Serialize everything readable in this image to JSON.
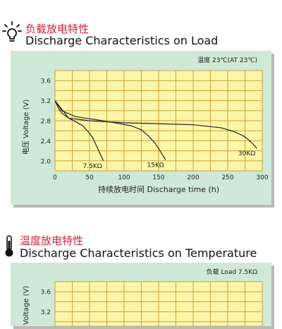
{
  "sections": [
    {
      "icon": "lightbulb-icon",
      "title_cn": "负载放电特性",
      "title_en": "Discharge Characteristics on Load"
    },
    {
      "icon": "thermometer-icon",
      "title_cn": "温度放电特性",
      "title_en": "Discharge Characteristics on Temperature"
    }
  ],
  "colors": {
    "title_cn": "#d4213a",
    "panel_bg": "#cfe8d7",
    "plot_bg": "#fcf6a8",
    "grid": "#c9a23a",
    "curve": "#222222"
  },
  "chart_data": [
    {
      "type": "line",
      "condition": "温度 23℃(AT 23℃)",
      "xlabel": "持续放电时间   Discharge time (h)",
      "ylabel": "电压 Voltage (V)",
      "xlim": [
        0,
        300
      ],
      "ylim": [
        1.8,
        3.8
      ],
      "xticks": [
        0,
        50,
        100,
        150,
        200,
        250,
        300
      ],
      "yticks": [
        2.0,
        2.4,
        2.8,
        3.2,
        3.6
      ],
      "yticks_labels": [
        "2.0",
        "2.4",
        "2.8",
        "3.2",
        "3.6"
      ],
      "grid": true,
      "series": [
        {
          "name": "7.5KΩ",
          "x": [
            0,
            5,
            10,
            20,
            30,
            40,
            50,
            55,
            60,
            65,
            70
          ],
          "y": [
            3.2,
            3.05,
            2.95,
            2.85,
            2.78,
            2.7,
            2.55,
            2.45,
            2.3,
            2.15,
            2.0
          ]
        },
        {
          "name": "15KΩ",
          "x": [
            0,
            10,
            30,
            60,
            90,
            110,
            125,
            135,
            145,
            152,
            160
          ],
          "y": [
            3.2,
            3.0,
            2.88,
            2.82,
            2.75,
            2.7,
            2.62,
            2.5,
            2.35,
            2.2,
            2.02
          ]
        },
        {
          "name": "30KΩ",
          "x": [
            0,
            20,
            50,
            100,
            150,
            200,
            240,
            260,
            275,
            285,
            292
          ],
          "y": [
            3.2,
            2.85,
            2.8,
            2.76,
            2.74,
            2.72,
            2.66,
            2.58,
            2.48,
            2.36,
            2.25
          ]
        }
      ]
    },
    {
      "type": "line",
      "condition": "负载  Load 7.5KΩ",
      "ylabel": "电压 Voltage (V)",
      "ylim": [
        1.8,
        3.8
      ],
      "yticks": [
        3.2,
        3.6
      ],
      "yticks_labels": [
        "3.2",
        "3.6"
      ],
      "grid": true,
      "series": []
    }
  ]
}
